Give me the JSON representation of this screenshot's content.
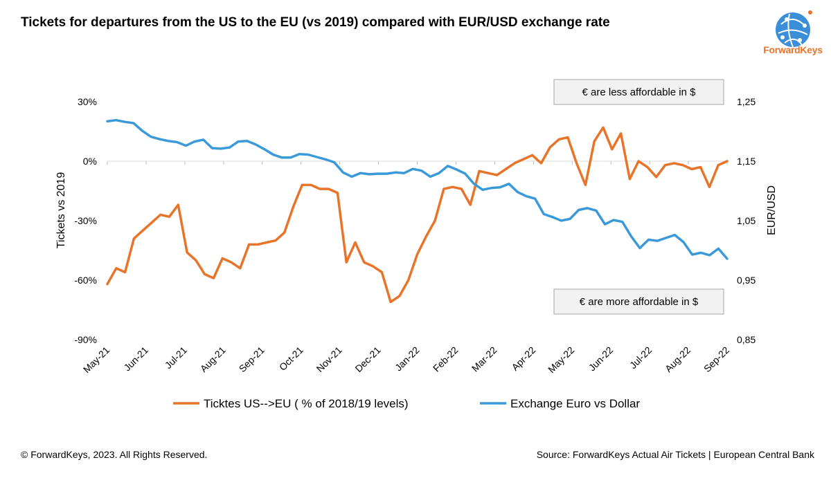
{
  "header": {
    "title": "Tickets for departures from the US to the EU (vs 2019) compared with EUR/USD exchange rate"
  },
  "brand": {
    "logo_text": "ForwardKeys",
    "accent": "#e8742a",
    "globe": "#3b8fd9"
  },
  "footer": {
    "copyright": "© ForwardKeys, 2023. All Rights Reserved.",
    "source": "Source: ForwardKeys Actual Air Tickets | European Central Bank"
  },
  "chart_data": {
    "type": "line",
    "title": "Tickets for departures from the US to the EU (vs 2019) compared with EUR/USD exchange rate",
    "xlabel": "",
    "ylabel": "Tickets vs 2019",
    "ylabel_right": "EUR/USD",
    "x_ticks": [
      "May-21",
      "Jun-21",
      "Jul-21",
      "Aug-21",
      "Sep-21",
      "Oct-21",
      "Nov-21",
      "Dec-21",
      "Jan-22",
      "Feb-22",
      "Mar-22",
      "Apr-22",
      "May-22",
      "Jun-22",
      "Jul-22",
      "Aug-22",
      "Sep-22"
    ],
    "ylim_left": [
      -90,
      30
    ],
    "yticks_left": [
      "30%",
      "0%",
      "-30%",
      "-60%",
      "-90%"
    ],
    "ylim_right": [
      0.85,
      1.25
    ],
    "yticks_right": [
      "1,25",
      "1,15",
      "1,05",
      "0,95",
      "0,85"
    ],
    "annotations": [
      "€ are less affordable in $",
      "€ are more affordable in $"
    ],
    "legend_position": "bottom",
    "series": [
      {
        "name": "Ticktes US-->EU ( % of 2018/19 levels)",
        "color": "#e8742a",
        "axis": "left",
        "values": [
          -62,
          -54,
          -56,
          -39,
          -35,
          -31,
          -27,
          -28,
          -22,
          -46,
          -50,
          -57,
          -59,
          -49,
          -51,
          -54,
          -42,
          -42,
          -41,
          -40,
          -36,
          -23,
          -12,
          -12,
          -14,
          -14,
          -16,
          -51,
          -41,
          -51,
          -53,
          -56,
          -71,
          -68,
          -60,
          -47,
          -38,
          -30,
          -14,
          -13,
          -14,
          -22,
          -5,
          -6,
          -7,
          -4,
          -1,
          1,
          3,
          -1,
          7,
          11,
          12,
          -1,
          -12,
          10,
          17,
          6,
          14,
          -9,
          0,
          -3,
          -8,
          -2,
          -1,
          -2,
          -4,
          -3,
          -13,
          -2,
          0
        ]
      },
      {
        "name": "Exchange Euro vs Dollar",
        "color": "#3a9ad9",
        "axis": "right",
        "values": [
          1.217,
          1.219,
          1.216,
          1.214,
          1.201,
          1.191,
          1.187,
          1.184,
          1.182,
          1.176,
          1.183,
          1.186,
          1.172,
          1.171,
          1.173,
          1.183,
          1.184,
          1.178,
          1.17,
          1.161,
          1.156,
          1.156,
          1.162,
          1.161,
          1.157,
          1.153,
          1.148,
          1.131,
          1.124,
          1.13,
          1.128,
          1.129,
          1.129,
          1.131,
          1.13,
          1.137,
          1.134,
          1.124,
          1.13,
          1.142,
          1.136,
          1.129,
          1.112,
          1.102,
          1.105,
          1.106,
          1.112,
          1.098,
          1.091,
          1.087,
          1.061,
          1.056,
          1.05,
          1.053,
          1.068,
          1.071,
          1.067,
          1.044,
          1.051,
          1.048,
          1.024,
          1.004,
          1.018,
          1.016,
          1.021,
          1.026,
          1.014,
          0.993,
          0.996,
          0.992,
          1.003,
          0.986
        ]
      }
    ]
  }
}
